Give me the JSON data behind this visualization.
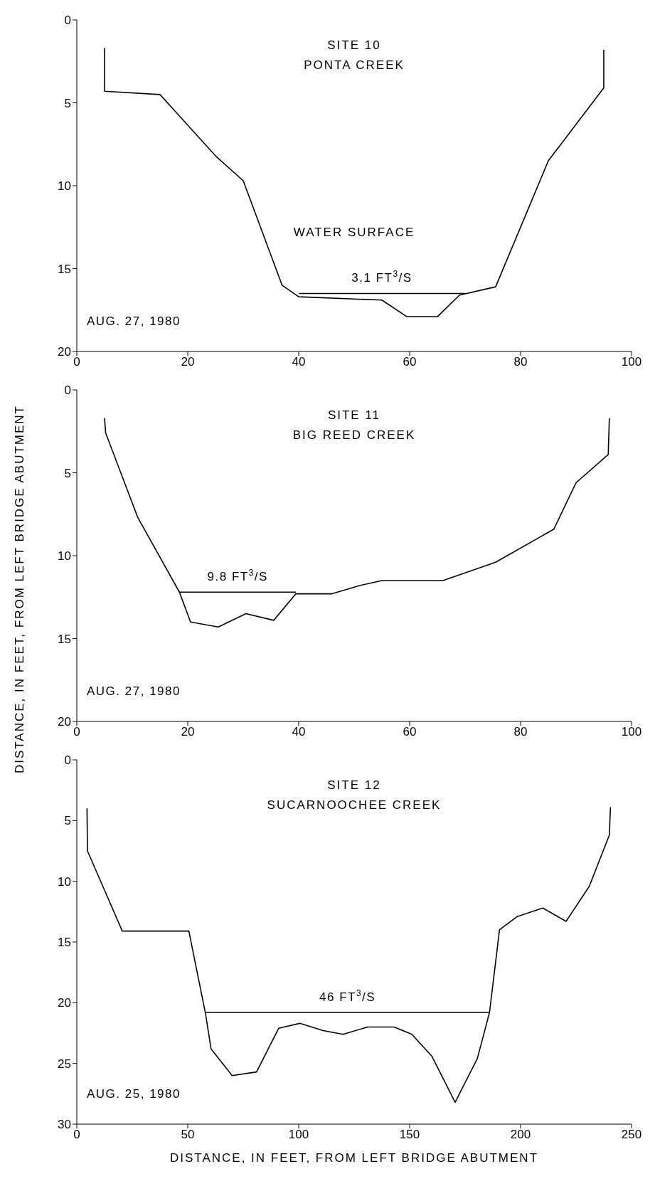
{
  "chart_data": [
    {
      "type": "line",
      "title": "SITE 10",
      "subtitle": "PONTA CREEK",
      "marker": "none",
      "line_style": "solid",
      "grid": false,
      "legend": false,
      "xlim": [
        0,
        100
      ],
      "xticks": [
        0,
        20,
        40,
        60,
        80,
        100
      ],
      "ylim": [
        20,
        0
      ],
      "yticks": [
        0,
        5,
        10,
        15,
        20
      ],
      "series": [
        {
          "color": "#000000",
          "x": [
            5,
            5,
            15,
            25,
            30,
            37,
            40,
            55,
            59.5,
            65,
            69,
            75.5,
            85,
            95,
            95
          ],
          "values": [
            1.7,
            4.3,
            4.5,
            8.2,
            9.7,
            16,
            16.7,
            16.9,
            17.9,
            17.9,
            16.6,
            16.1,
            8.5,
            4.1,
            1.8
          ]
        },
        {
          "name": "3.1 FT$^{3}$/S",
          "color": "#000000",
          "x": [
            40,
            70
          ],
          "values": [
            16.5,
            16.5
          ]
        }
      ],
      "annotations": [
        "AUG. 27, 1980",
        "WATER SURFACE"
      ]
    },
    {
      "type": "line",
      "title": "SITE 11",
      "subtitle": "BIG REED CREEK",
      "marker": "none",
      "line_style": "solid",
      "grid": false,
      "legend": false,
      "ylabel": "DISTANCE, IN FEET, FROM LEFT BRIDGE ABUTMENT",
      "xlim": [
        0,
        100
      ],
      "xticks": [
        0,
        20,
        40,
        60,
        80,
        100
      ],
      "ylim": [
        20,
        0
      ],
      "yticks": [
        0,
        5,
        10,
        15,
        20
      ],
      "series": [
        {
          "color": "#000000",
          "x": [
            5,
            5.2,
            11,
            18.5,
            20.5,
            25.5,
            30.5,
            35.5,
            39.5,
            41.5,
            46,
            51,
            55,
            66,
            75.5,
            86,
            90,
            95.8,
            96
          ],
          "values": [
            1.7,
            2.6,
            7.7,
            12.2,
            14,
            14.3,
            13.5,
            13.9,
            12.3,
            12.3,
            12.3,
            11.8,
            11.5,
            11.5,
            10.4,
            8.4,
            5.6,
            3.9,
            1.7
          ]
        },
        {
          "name": "9.8 FT$^{3}$/S",
          "color": "#000000",
          "x": [
            18.5,
            39.5
          ],
          "values": [
            12.2,
            12.2
          ]
        }
      ],
      "annotations": [
        "AUG. 27, 1980"
      ]
    },
    {
      "type": "line",
      "title": "SITE 12",
      "subtitle": "SUCARNOOCHEE CREEK",
      "marker": "none",
      "line_style": "solid",
      "grid": false,
      "legend": false,
      "xlabel": "DISTANCE, IN FEET, FROM LEFT BRIDGE ABUTMENT",
      "xlim": [
        0,
        250
      ],
      "xticks": [
        0,
        50,
        100,
        150,
        200,
        250
      ],
      "ylim": [
        30,
        0
      ],
      "yticks": [
        0,
        5,
        10,
        15,
        20,
        25,
        30
      ],
      "series": [
        {
          "color": "#000000",
          "x": [
            4.6,
            4.8,
            20.5,
            50.5,
            58,
            60.5,
            70,
            81,
            91,
            100.5,
            111,
            120,
            131,
            143,
            151,
            160,
            170.5,
            180.5,
            186,
            190.5,
            198.5,
            210,
            220.5,
            231,
            240,
            240.5
          ],
          "values": [
            4,
            7.5,
            14.1,
            14.1,
            20.9,
            23.8,
            26,
            25.7,
            22.1,
            21.7,
            22.3,
            22.6,
            22,
            22,
            22.6,
            24.4,
            28.2,
            24.6,
            20.8,
            14,
            12.9,
            12.2,
            13.3,
            10.4,
            6.2,
            3.9
          ]
        },
        {
          "name": "46 FT$^{3}$/S",
          "color": "#000000",
          "x": [
            58,
            186
          ],
          "values": [
            20.8,
            20.8
          ]
        }
      ],
      "annotations": [
        "AUG. 25, 1980"
      ]
    }
  ]
}
